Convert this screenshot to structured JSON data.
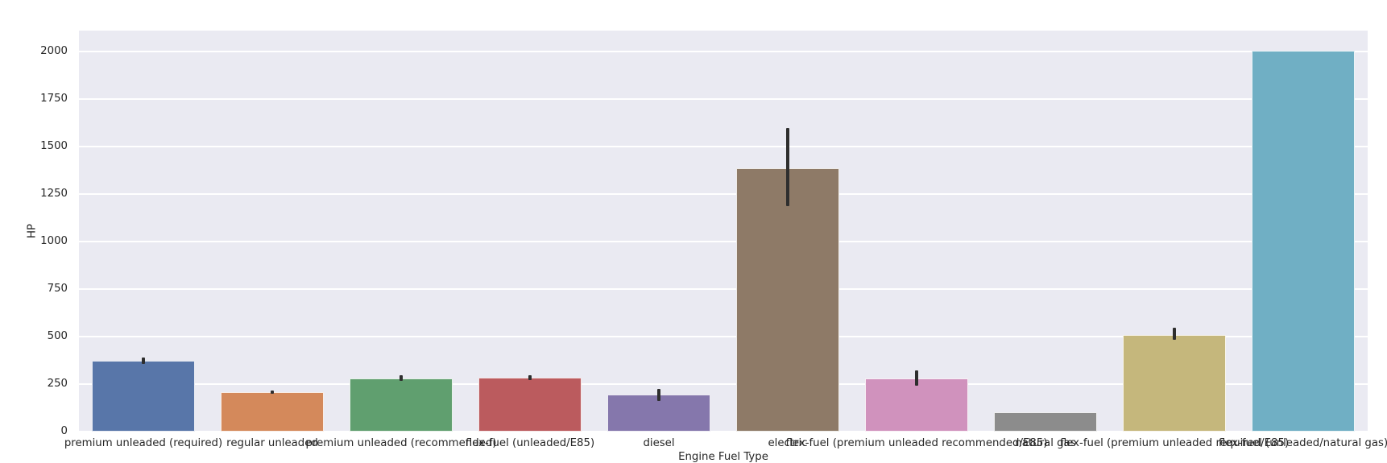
{
  "chart_data": {
    "type": "bar",
    "title": "",
    "xlabel": "Engine Fuel Type",
    "ylabel": "HP",
    "categories": [
      "premium unleaded (required)",
      "regular unleaded",
      "premium unleaded (recommended)",
      "flex-fuel (unleaded/E85)",
      "diesel",
      "electric",
      "flex-fuel (premium unleaded recommended/E85)",
      "natural gas",
      "flex-fuel (premium unleaded required/E85)",
      "flex-fuel (unleaded/natural gas)"
    ],
    "values": [
      372,
      208,
      281,
      285,
      193,
      1387,
      278,
      103,
      509,
      2005
    ],
    "error_bars": [
      [
        356,
        388
      ],
      [
        198,
        216
      ],
      [
        268,
        295
      ],
      [
        270,
        297
      ],
      [
        161,
        225
      ],
      [
        1186,
        1597
      ],
      [
        242,
        321
      ],
      null,
      [
        483,
        546
      ],
      null
    ],
    "bar_colors": [
      "#5876A9",
      "#D4895B",
      "#609F6F",
      "#BB5B5E",
      "#8577AC",
      "#8E7A67",
      "#D092BD",
      "#8C8C8C",
      "#C5B77C",
      "#70AFC4"
    ],
    "yticks": [
      0,
      250,
      500,
      750,
      1000,
      1250,
      1500,
      1750,
      2000
    ],
    "ylim": [
      0,
      2110
    ],
    "grid": "horizontal-white-gridlines",
    "legend": "none",
    "plot_bg_color": "#EAEAF2",
    "figure_bg_color": "#FFFFFF",
    "error_bar_color": "#2E2E2E",
    "tick_label_color": "#262626",
    "bar_width_fraction": 0.8
  }
}
